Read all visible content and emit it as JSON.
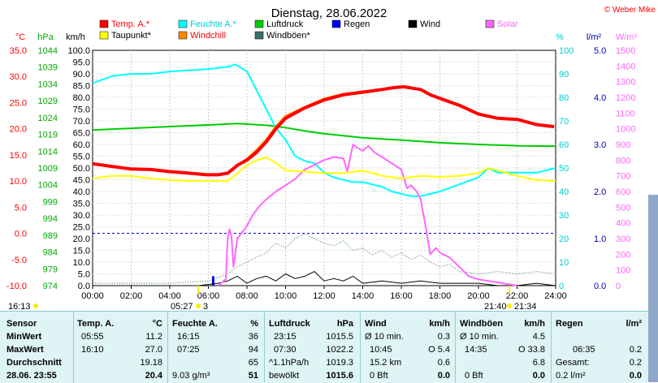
{
  "chart_data": {
    "type": "line",
    "title": "Dienstag, 28.06.2022",
    "credit": "© Weber Mike",
    "x_ticks": [
      "00:00",
      "02:00",
      "04:00",
      "06:00",
      "08:00",
      "10:00",
      "12:00",
      "14:00",
      "16:00",
      "18:00",
      "20:00",
      "22:00",
      "24:00"
    ],
    "xlim": [
      0,
      24
    ],
    "axes": [
      {
        "id": "temp",
        "unit": "°C",
        "color": "#ff0000",
        "side": "left",
        "lim": [
          -10,
          35
        ],
        "ticks": [
          "35.0",
          "30.0",
          "25.0",
          "20.0",
          "15.0",
          "10.0",
          "5.0",
          "0.0",
          "-5.0",
          "-10.0"
        ]
      },
      {
        "id": "press",
        "unit": "hPa",
        "color": "#00aa00",
        "side": "left",
        "lim": [
          974,
          1044
        ],
        "ticks": [
          "1044",
          "1039",
          "1034",
          "1029",
          "1024",
          "1019",
          "1014",
          "1009",
          "1004",
          "999",
          "994",
          "989",
          "984",
          "979",
          "974"
        ]
      },
      {
        "id": "wind",
        "unit": "km/h",
        "color": "#000000",
        "side": "left",
        "lim": [
          0,
          100
        ],
        "ticks": [
          "100.0",
          "95.0",
          "90.0",
          "85.0",
          "80.0",
          "75.0",
          "70.0",
          "65.0",
          "60.0",
          "55.0",
          "50.0",
          "45.0",
          "40.0",
          "35.0",
          "30.0",
          "25.0",
          "20.0",
          "15.0",
          "10.0",
          "5.0",
          "0.0"
        ]
      },
      {
        "id": "hum",
        "unit": "%",
        "color": "#00cccc",
        "side": "right",
        "lim": [
          0,
          100
        ],
        "ticks": [
          "100",
          "90",
          "80",
          "70",
          "60",
          "50",
          "40",
          "30",
          "20",
          "10",
          "0"
        ]
      },
      {
        "id": "rain",
        "unit": "l/m²",
        "color": "#0000aa",
        "side": "right",
        "lim": [
          0,
          5
        ],
        "ticks": [
          "5.0",
          "4.0",
          "3.0",
          "2.0",
          "1.0",
          "0.0"
        ]
      },
      {
        "id": "solar",
        "unit": "W/m²",
        "color": "#ff66ff",
        "side": "right",
        "lim": [
          0,
          1500
        ],
        "ticks": [
          "1500",
          "1400",
          "1300",
          "1200",
          "1100",
          "1000",
          "900",
          "800",
          "700",
          "600",
          "500",
          "400",
          "300",
          "200",
          "100",
          "0"
        ]
      }
    ],
    "legend": [
      {
        "name": "Temp. A.*",
        "color": "#ff0000"
      },
      {
        "name": "Feuchte A.*",
        "color": "#00ffff"
      },
      {
        "name": "Luftdruck",
        "color": "#00cc00"
      },
      {
        "name": "Regen",
        "color": "#0000ff"
      },
      {
        "name": "Wind",
        "color": "#000000"
      },
      {
        "name": "Solar",
        "color": "#ff66ff"
      },
      {
        "name": "Taupunkt*",
        "color": "#ffff00"
      },
      {
        "name": "Windchill",
        "color": "#ff8800"
      },
      {
        "name": "Windböen*",
        "color": "#3a6e6e"
      }
    ],
    "series": [
      {
        "name": "Temp. A.*",
        "axis": "temp",
        "color": "#ff0000",
        "width": 4,
        "x": [
          0,
          1,
          2,
          3,
          4,
          5,
          5.92,
          6.5,
          7,
          7.5,
          8,
          8.5,
          9,
          9.5,
          10,
          11,
          12,
          13,
          14,
          15,
          15.5,
          16,
          16.17,
          17,
          17.5,
          18,
          19,
          20,
          21,
          22,
          23,
          23.92
        ],
        "y": [
          13.3,
          12.8,
          12.3,
          12.2,
          11.8,
          11.5,
          11.2,
          11.2,
          11.5,
          13,
          14,
          15.5,
          17.5,
          20,
          22,
          24,
          25.5,
          26.5,
          27,
          27.5,
          27.8,
          28,
          28,
          27.5,
          26.5,
          25.8,
          24.5,
          22.8,
          22,
          21.8,
          20.8,
          20.4
        ]
      },
      {
        "name": "Taupunkt*",
        "axis": "temp",
        "color": "#ffff00",
        "width": 2,
        "x": [
          0,
          1,
          2,
          3,
          4,
          5,
          6,
          7,
          8,
          8.5,
          9,
          9.5,
          10,
          11,
          12,
          13,
          14,
          15,
          16,
          17,
          18,
          19,
          20,
          20.5,
          21,
          22,
          23,
          24
        ],
        "y": [
          10.5,
          11,
          11,
          10.5,
          10.2,
          10,
          10,
          10,
          13,
          14,
          14.5,
          13.5,
          12,
          11.8,
          11.5,
          11.5,
          12,
          11,
          10.5,
          11,
          10.8,
          11,
          11.5,
          12.5,
          12,
          11,
          10.2,
          10
        ]
      },
      {
        "name": "Windchill",
        "axis": "temp",
        "color": "#ff8800",
        "width": 2,
        "x": [
          7.5,
          8,
          8.5,
          9,
          9.5,
          10,
          11,
          12,
          13,
          14
        ],
        "y": [
          13,
          14.3,
          16,
          18,
          20.5,
          22.5,
          24.2,
          25.8,
          26.7,
          27.2
        ]
      },
      {
        "name": "Luftdruck",
        "axis": "press",
        "color": "#00cc00",
        "width": 2,
        "x": [
          0,
          2,
          4,
          6,
          7.5,
          9,
          10,
          11,
          12,
          14,
          16,
          18,
          20,
          22,
          24
        ],
        "y": [
          1020.3,
          1020.8,
          1021.3,
          1021.8,
          1022.2,
          1021.7,
          1021,
          1020,
          1019.2,
          1018,
          1017.3,
          1016.5,
          1016,
          1015.6,
          1015.5
        ]
      },
      {
        "name": "Feuchte A.*",
        "axis": "hum",
        "color": "#00ffff",
        "width": 2,
        "x": [
          0,
          1,
          2,
          3,
          4,
          5,
          6,
          7,
          7.4,
          8,
          8.5,
          9,
          9.5,
          10,
          10.5,
          11,
          11.5,
          12,
          12.5,
          13,
          13.5,
          14,
          14.5,
          15,
          15.5,
          16,
          16.5,
          17,
          17.5,
          18,
          19,
          20,
          20.5,
          21,
          22,
          23,
          24
        ],
        "y": [
          86,
          89,
          90,
          90,
          91,
          91.5,
          92,
          93,
          94,
          91,
          83,
          75,
          67,
          62,
          55,
          53,
          52,
          48,
          46,
          45,
          44,
          44,
          43,
          42,
          40,
          39,
          38,
          38,
          39,
          40,
          43,
          46,
          50,
          48,
          48,
          48,
          50
        ]
      },
      {
        "name": "Solar",
        "axis": "solar",
        "color": "#ff66ff",
        "width": 2,
        "x": [
          6.5,
          6.9,
          7.0,
          7.1,
          7.2,
          7.3,
          7.5,
          8,
          8.3,
          8.6,
          9,
          9.5,
          10,
          10.5,
          11,
          11.5,
          12,
          12.5,
          13,
          13.2,
          13.5,
          13.7,
          14,
          14.3,
          14.6,
          15,
          15.5,
          16,
          16.3,
          16.5,
          16.8,
          17,
          17.3,
          17.5,
          17.8,
          18,
          18.5,
          19,
          19.5,
          20,
          20.5,
          21,
          21.5,
          22
        ],
        "y": [
          0,
          40,
          300,
          360,
          310,
          120,
          300,
          380,
          450,
          500,
          550,
          600,
          640,
          680,
          740,
          770,
          800,
          820,
          810,
          730,
          900,
          880,
          860,
          890,
          850,
          820,
          780,
          740,
          620,
          640,
          600,
          550,
          350,
          200,
          240,
          210,
          180,
          120,
          60,
          40,
          30,
          20,
          10,
          0
        ]
      },
      {
        "name": "Windböen*",
        "axis": "wind",
        "color": "#3a6e6e",
        "width": 1,
        "dotted": true,
        "x": [
          0,
          2,
          4,
          6,
          7,
          7.5,
          8,
          9,
          9.5,
          10,
          10.5,
          11,
          11.5,
          12,
          12.5,
          13,
          13.5,
          14,
          14.5,
          15,
          15.5,
          16,
          16.5,
          17,
          17.5,
          18,
          18.5,
          19,
          20,
          21,
          22,
          23,
          24
        ],
        "y": [
          1,
          1,
          1,
          2,
          5,
          8,
          10,
          14,
          18,
          16,
          20,
          22,
          20,
          18,
          17,
          19,
          15,
          16,
          13,
          15,
          12,
          14,
          11,
          13,
          10,
          8,
          9,
          6,
          5,
          6,
          5,
          6,
          5
        ]
      },
      {
        "name": "Wind",
        "axis": "wind",
        "color": "#000000",
        "width": 1,
        "x": [
          0,
          3,
          5.5,
          6.5,
          7,
          7.5,
          8,
          8.5,
          9,
          9.5,
          10,
          10.5,
          11,
          11.5,
          12,
          12.5,
          13,
          13.5,
          14,
          15,
          16,
          17,
          18,
          19,
          20,
          21,
          22,
          23,
          24
        ],
        "y": [
          0,
          0,
          0,
          1,
          2,
          4,
          1,
          3,
          4,
          2,
          5,
          3,
          4,
          6,
          2,
          3,
          2,
          4,
          1,
          2,
          1,
          2,
          1,
          1,
          1,
          0,
          0,
          1,
          0
        ]
      }
    ],
    "rain_bars": {
      "x": [
        6.25
      ],
      "values": [
        0.2
      ]
    },
    "ref_lines": [
      {
        "axis": "temp",
        "value": 0,
        "color": "#0000cc",
        "style": "dashed"
      }
    ],
    "grid": true,
    "below_axis": {
      "left_time": "16:13",
      "sunrise": "05:27",
      "sunrise_extra": "3",
      "sunset": "21:40",
      "sunset_extra": "21:34"
    }
  },
  "table": {
    "col1": {
      "h": "Sensor",
      "min": "MinWert",
      "max": "MaxWert",
      "avg": "Durchschnitt",
      "cur": "28.06. 23:55"
    },
    "temp": {
      "h": "Temp. A.",
      "unit": "°C",
      "min_t": "05:55",
      "min_v": "11.2",
      "max_t": "16:10",
      "max_v": "27.0",
      "avg_v": "19.18",
      "cur_v": "20.4"
    },
    "hum": {
      "h": "Feuchte A.",
      "unit": "%",
      "min_t": "16:15",
      "min_v": "36",
      "max_t": "07:25",
      "max_v": "94",
      "avg_v": "65",
      "cur_l": "9.03 g/m³",
      "cur_v": "51"
    },
    "press": {
      "h": "Luftdruck",
      "unit": "hPa",
      "min_t": "23:15",
      "min_v": "1015.5",
      "max_t": "07:30",
      "max_v": "1022.2",
      "avg_l": "^1.1hPa/h",
      "avg_v": "1019.3",
      "cur_l": "bewölkt",
      "cur_v": "1015.6"
    },
    "wind": {
      "h": "Wind",
      "unit": "km/h",
      "min_l": "Ø 10 min.",
      "min_v": "0.3",
      "max_t": "10:45",
      "max_v": "O 5.4",
      "avg_l": "15.2 km",
      "avg_v": "0.6",
      "cur_l": "0 Bft",
      "cur_v": "0.0"
    },
    "gust": {
      "h": "Windböen",
      "unit": "km/h",
      "min_l": "Ø 10 min.",
      "min_v": "4.5",
      "max_t": "14:35",
      "max_v": "O 33.8",
      "avg_v": "6.8",
      "cur_l": "0 Bft",
      "cur_v": "0.0"
    },
    "rain": {
      "h": "Regen",
      "unit": "l/m²",
      "max_t": "06:35",
      "max_v": "0.2",
      "avg_l": "Gesamt:",
      "avg_v": "0.2",
      "cur_l": "0.2 l/m²",
      "cur_v": "0.0"
    }
  }
}
